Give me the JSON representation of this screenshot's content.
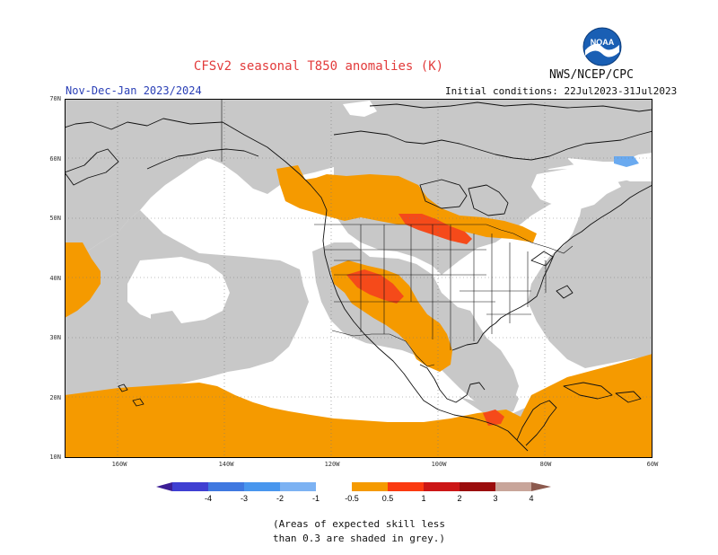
{
  "title": "CFSv2 seasonal T850 anomalies (K)",
  "agency": "NWS/NCEP/CPC",
  "logo_text": "NOAA",
  "period": "Nov-Dec-Jan 2023/2024",
  "initial_conditions": "Initial conditions: 22Jul2023-31Jul2023",
  "lat_labels": [
    "70N",
    "60N",
    "50N",
    "40N",
    "30N",
    "20N",
    "10N"
  ],
  "lon_labels": [
    "160W",
    "140W",
    "120W",
    "100W",
    "80W",
    "60W"
  ],
  "colorbar": {
    "labels": [
      "-4",
      "-3",
      "-2",
      "-1",
      "-0.5",
      "0.5",
      "1",
      "2",
      "3",
      "4"
    ],
    "colors": [
      "#3c1e96",
      "#3f3fd2",
      "#3f78e0",
      "#4896ee",
      "#7cb2f3",
      "#ffffff",
      "#f59a00",
      "#fb3a10",
      "#cc1616",
      "#9b0d0d",
      "#c8a59a",
      "#8c5a4e"
    ]
  },
  "note_lines": [
    "(Areas of expected skill less",
    "than 0.3 are shaded in grey.)"
  ],
  "colors": {
    "grey": "#c8c8c8",
    "orange": "#f59a00",
    "red_orange": "#f54a1a",
    "light_blue": "#6aaaf0",
    "title_red": "#e23b3b",
    "period_blue": "#2a3fb6"
  }
}
